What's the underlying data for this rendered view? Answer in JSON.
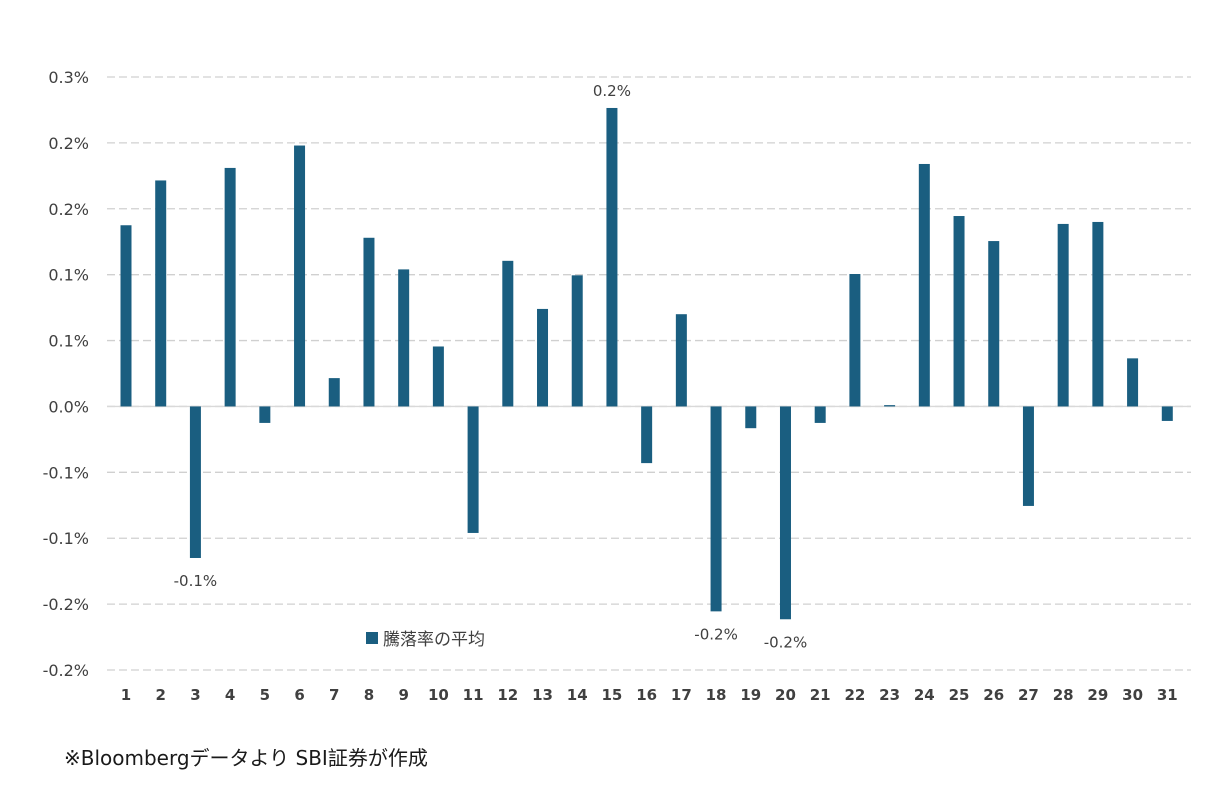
{
  "chart_data": {
    "type": "bar",
    "title": "",
    "xlabel": "",
    "ylabel": "",
    "categories": [
      "1",
      "2",
      "3",
      "4",
      "5",
      "6",
      "7",
      "8",
      "9",
      "10",
      "11",
      "12",
      "13",
      "14",
      "15",
      "16",
      "17",
      "18",
      "19",
      "20",
      "21",
      "22",
      "23",
      "24",
      "25",
      "26",
      "27",
      "28",
      "29",
      "30",
      "31"
    ],
    "series": [
      {
        "name": "騰落率の平均",
        "color": "#1a5e80",
        "values": [
          0.1375,
          0.1715,
          -0.115,
          0.181,
          -0.0125,
          0.198,
          0.0215,
          0.128,
          0.104,
          0.0455,
          -0.096,
          0.1105,
          0.074,
          0.0995,
          0.2265,
          -0.043,
          0.07,
          -0.1555,
          -0.0165,
          -0.1615,
          -0.0125,
          0.1005,
          0.001,
          0.184,
          0.1445,
          0.1255,
          -0.0755,
          0.1385,
          0.14,
          0.0365,
          -0.011
        ]
      }
    ],
    "ylim": [
      -0.2,
      0.25
    ],
    "yticks": [
      -0.2,
      -0.15,
      -0.1,
      -0.05,
      0.0,
      0.05,
      0.1,
      0.15,
      0.2,
      0.25
    ],
    "ytick_labels": [
      "-0.2%",
      "-0.2%",
      "-0.1%",
      "-0.1%",
      "0.0%",
      "0.1%",
      "0.1%",
      "0.2%",
      "0.2%",
      "0.3%"
    ],
    "data_labels": [
      {
        "category": "3",
        "text": "-0.1%"
      },
      {
        "category": "15",
        "text": "0.2%"
      },
      {
        "category": "18",
        "text": "-0.2%"
      },
      {
        "category": "20",
        "text": "-0.2%"
      }
    ],
    "grid": true,
    "legend_position": "bottom-center (inside plot)"
  },
  "footnote": "※Bloombergデータより SBI証券が作成"
}
